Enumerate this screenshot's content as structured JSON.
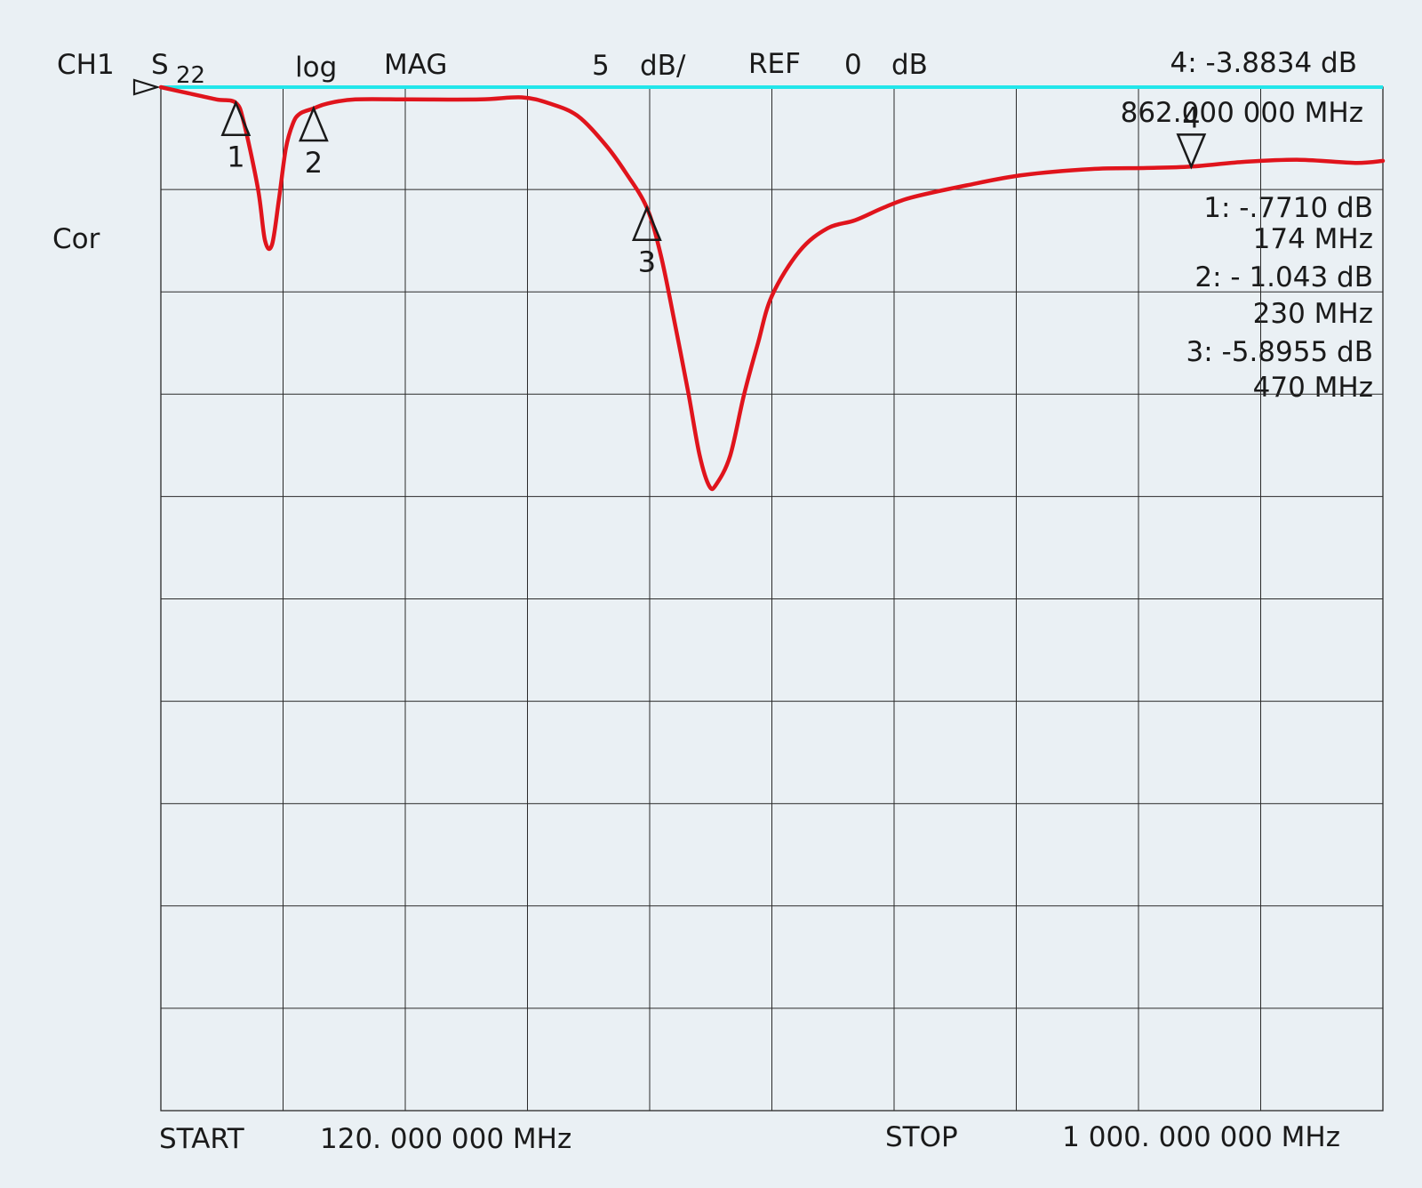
{
  "header": {
    "channel": "CH1",
    "param_main": "S",
    "param_sub": "22",
    "format_1": "log",
    "format_2": "MAG",
    "scale_value": "5",
    "scale_unit": "dB/",
    "ref_label": "REF",
    "ref_value": "0",
    "ref_unit": "dB",
    "active_marker_value": "4: -3.8834 dB",
    "active_marker_freq": "862.000 000 MHz"
  },
  "status": {
    "correction": "Cor"
  },
  "marker_readouts": [
    {
      "value": "1:  -.7710 dB",
      "freq": "174 MHz"
    },
    {
      "value": "2: - 1.043 dB",
      "freq": "230 MHz"
    },
    {
      "value": "3:  -5.8955 dB",
      "freq": "470 MHz"
    }
  ],
  "footer": {
    "start_label": "START",
    "start_value": "120. 000 000 MHz",
    "stop_label": "STOP",
    "stop_value": "1 000. 000 000 MHz"
  },
  "colors": {
    "trace": "#e0141c",
    "reference_line": "#22e6ea",
    "grid": "#2a2a2a",
    "background": "#eaf0f4"
  },
  "chart_data": {
    "type": "line",
    "x_unit": "MHz",
    "y_unit": "dB",
    "xlim": [
      120,
      1000
    ],
    "ylim": [
      -50,
      0
    ],
    "y_divisions": 10,
    "x_divisions": 10,
    "scale_per_div": 5,
    "reference_level": 0,
    "grid": true,
    "series": [
      {
        "values_x": [
          120,
          140,
          160,
          174,
          180,
          190,
          195,
          200,
          205,
          210,
          215,
          220,
          230,
          240,
          260,
          300,
          350,
          380,
          400,
          420,
          440,
          455,
          470,
          480,
          490,
          500,
          508,
          515,
          520,
          530,
          540,
          550,
          560,
          580,
          600,
          620,
          640,
          660,
          700,
          740,
          790,
          830,
          862,
          900,
          940,
          980,
          1000
        ],
        "values_y": [
          0,
          -0.3,
          -0.6,
          -0.77,
          -1.8,
          -5.0,
          -7.5,
          -7.7,
          -5.5,
          -3.0,
          -1.8,
          -1.3,
          -1.04,
          -0.8,
          -0.6,
          -0.6,
          -0.6,
          -0.5,
          -0.8,
          -1.4,
          -2.8,
          -4.2,
          -5.9,
          -8.2,
          -11.5,
          -15.0,
          -18.0,
          -19.5,
          -19.4,
          -18.0,
          -15.0,
          -12.5,
          -10.2,
          -8.0,
          -6.9,
          -6.5,
          -5.9,
          -5.4,
          -4.8,
          -4.3,
          -4.0,
          -3.95,
          -3.88,
          -3.65,
          -3.55,
          -3.7,
          -3.6
        ]
      }
    ],
    "markers": [
      {
        "label": "1",
        "x": 174,
        "y": -0.771,
        "direction": "up"
      },
      {
        "label": "2",
        "x": 230,
        "y": -1.043,
        "direction": "up"
      },
      {
        "label": "3",
        "x": 470,
        "y": -5.8955,
        "direction": "up"
      },
      {
        "label": "4",
        "x": 862,
        "y": -3.8834,
        "direction": "down"
      }
    ]
  }
}
